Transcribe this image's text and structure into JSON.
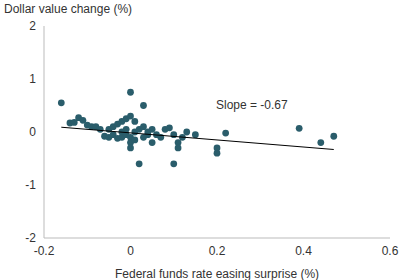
{
  "chart_data": {
    "type": "scatter",
    "y_label": "Dollar value change (%)",
    "x_label": "Federal funds rate easing surprise (%)",
    "annotations": [
      "Slope = -0.67"
    ],
    "series": [
      {
        "type": "scatter",
        "color": "#2a5d6b",
        "marker": "circle",
        "x": [
          -0.16,
          -0.14,
          -0.13,
          -0.12,
          -0.11,
          -0.1,
          -0.09,
          -0.08,
          -0.07,
          -0.06,
          -0.05,
          -0.05,
          -0.04,
          -0.04,
          -0.03,
          -0.03,
          -0.02,
          -0.02,
          -0.02,
          -0.01,
          -0.01,
          -0.01,
          0.0,
          0.0,
          0.0,
          0.0,
          0.0,
          0.01,
          0.01,
          0.01,
          0.02,
          0.02,
          0.03,
          0.03,
          0.03,
          0.04,
          0.04,
          0.05,
          0.05,
          0.06,
          0.07,
          0.08,
          0.09,
          0.1,
          0.1,
          0.11,
          0.11,
          0.12,
          0.13,
          0.15,
          0.2,
          0.2,
          0.22,
          0.39,
          0.44,
          0.47
        ],
        "values": [
          0.55,
          0.17,
          0.18,
          0.27,
          0.22,
          0.13,
          0.1,
          0.1,
          0.05,
          -0.08,
          -0.1,
          0.05,
          -0.05,
          0.1,
          0.15,
          -0.12,
          0.0,
          -0.1,
          0.2,
          0.05,
          -0.05,
          0.25,
          0.75,
          0.3,
          -0.1,
          -0.2,
          -0.3,
          0.2,
          -0.15,
          0.0,
          -0.6,
          0.05,
          -0.1,
          0.1,
          0.5,
          -0.05,
          0.0,
          0.05,
          -0.2,
          -0.05,
          -0.1,
          0.05,
          0.08,
          -0.6,
          -0.05,
          -0.2,
          -0.3,
          -0.1,
          0.0,
          -0.05,
          -0.3,
          -0.4,
          -0.02,
          0.07,
          -0.2,
          -0.08
        ]
      },
      {
        "type": "line",
        "color": "#000000",
        "line_style": "solid",
        "x": [
          -0.16,
          0.47
        ],
        "values": [
          0.09,
          -0.33
        ]
      }
    ],
    "xlim": [
      -0.2,
      0.6
    ],
    "xticks": [
      -0.2,
      0,
      0.2,
      0.4,
      0.6
    ],
    "ylim": [
      -2,
      2
    ],
    "yticks": [
      -2,
      -1,
      0,
      1,
      2
    ],
    "grid": false
  }
}
